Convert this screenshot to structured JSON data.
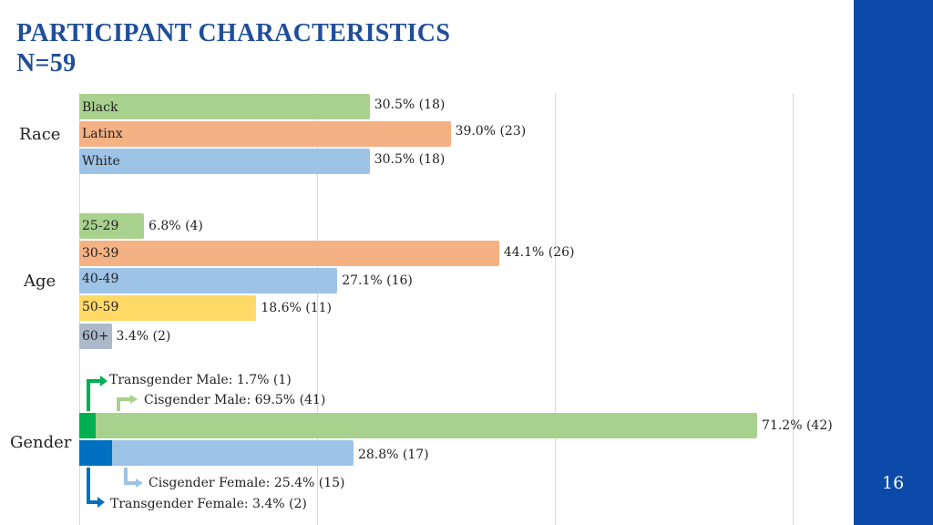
{
  "title_line1": "PARTICIPANT CHARACTERISTICS",
  "title_line2": "N=59",
  "slide_number": "16",
  "colors": {
    "accent_blue": "#1f4e9c",
    "sidebar": "#0b4aa8",
    "green": "#a9d18e",
    "orange": "#f4b183",
    "light_blue": "#9dc3e6",
    "yellow": "#ffd966",
    "gray": "#adb9ca",
    "dark_green": "#00b050",
    "dark_blue": "#0070c0"
  },
  "chart_data": {
    "type": "bar",
    "orientation": "horizontal",
    "xlim": [
      0,
      100
    ],
    "grid": true,
    "groups": [
      {
        "name": "Race",
        "categories": [
          "Black",
          "Latinx",
          "White"
        ],
        "values": [
          30.5,
          39.0,
          30.5
        ],
        "counts": [
          18,
          23,
          18
        ],
        "value_labels": [
          "30.5% (18)",
          "39.0% (23)",
          "30.5% (18)"
        ]
      },
      {
        "name": "Age",
        "categories": [
          "25-29",
          "30-39",
          "40-49",
          "50-59",
          "60+"
        ],
        "values": [
          6.8,
          44.1,
          27.1,
          18.6,
          3.4
        ],
        "counts": [
          4,
          26,
          16,
          11,
          2
        ],
        "value_labels": [
          "6.8% (4)",
          "44.1% (26)",
          "27.1% (16)",
          "18.6% (11)",
          "3.4% (2)"
        ]
      },
      {
        "name": "Gender",
        "categories": [
          "Male",
          "Female"
        ],
        "values": [
          71.2,
          28.8
        ],
        "counts": [
          42,
          17
        ],
        "value_labels": [
          "71.2% (42)",
          "28.8% (17)"
        ],
        "stacked_segments": [
          {
            "name": "Transgender Male",
            "value": 1.7,
            "count": 1,
            "label": "Transgender Male: 1.7% (1)"
          },
          {
            "name": "Cisgender Male",
            "value": 69.5,
            "count": 41,
            "label": "Cisgender Male: 69.5% (41)"
          },
          {
            "name": "Cisgender Female",
            "value": 25.4,
            "count": 15,
            "label": "Cisgender Female: 25.4% (15)"
          },
          {
            "name": "Transgender Female",
            "value": 3.4,
            "count": 2,
            "label": "Transgender Female: 3.4% (2)"
          }
        ]
      }
    ]
  }
}
